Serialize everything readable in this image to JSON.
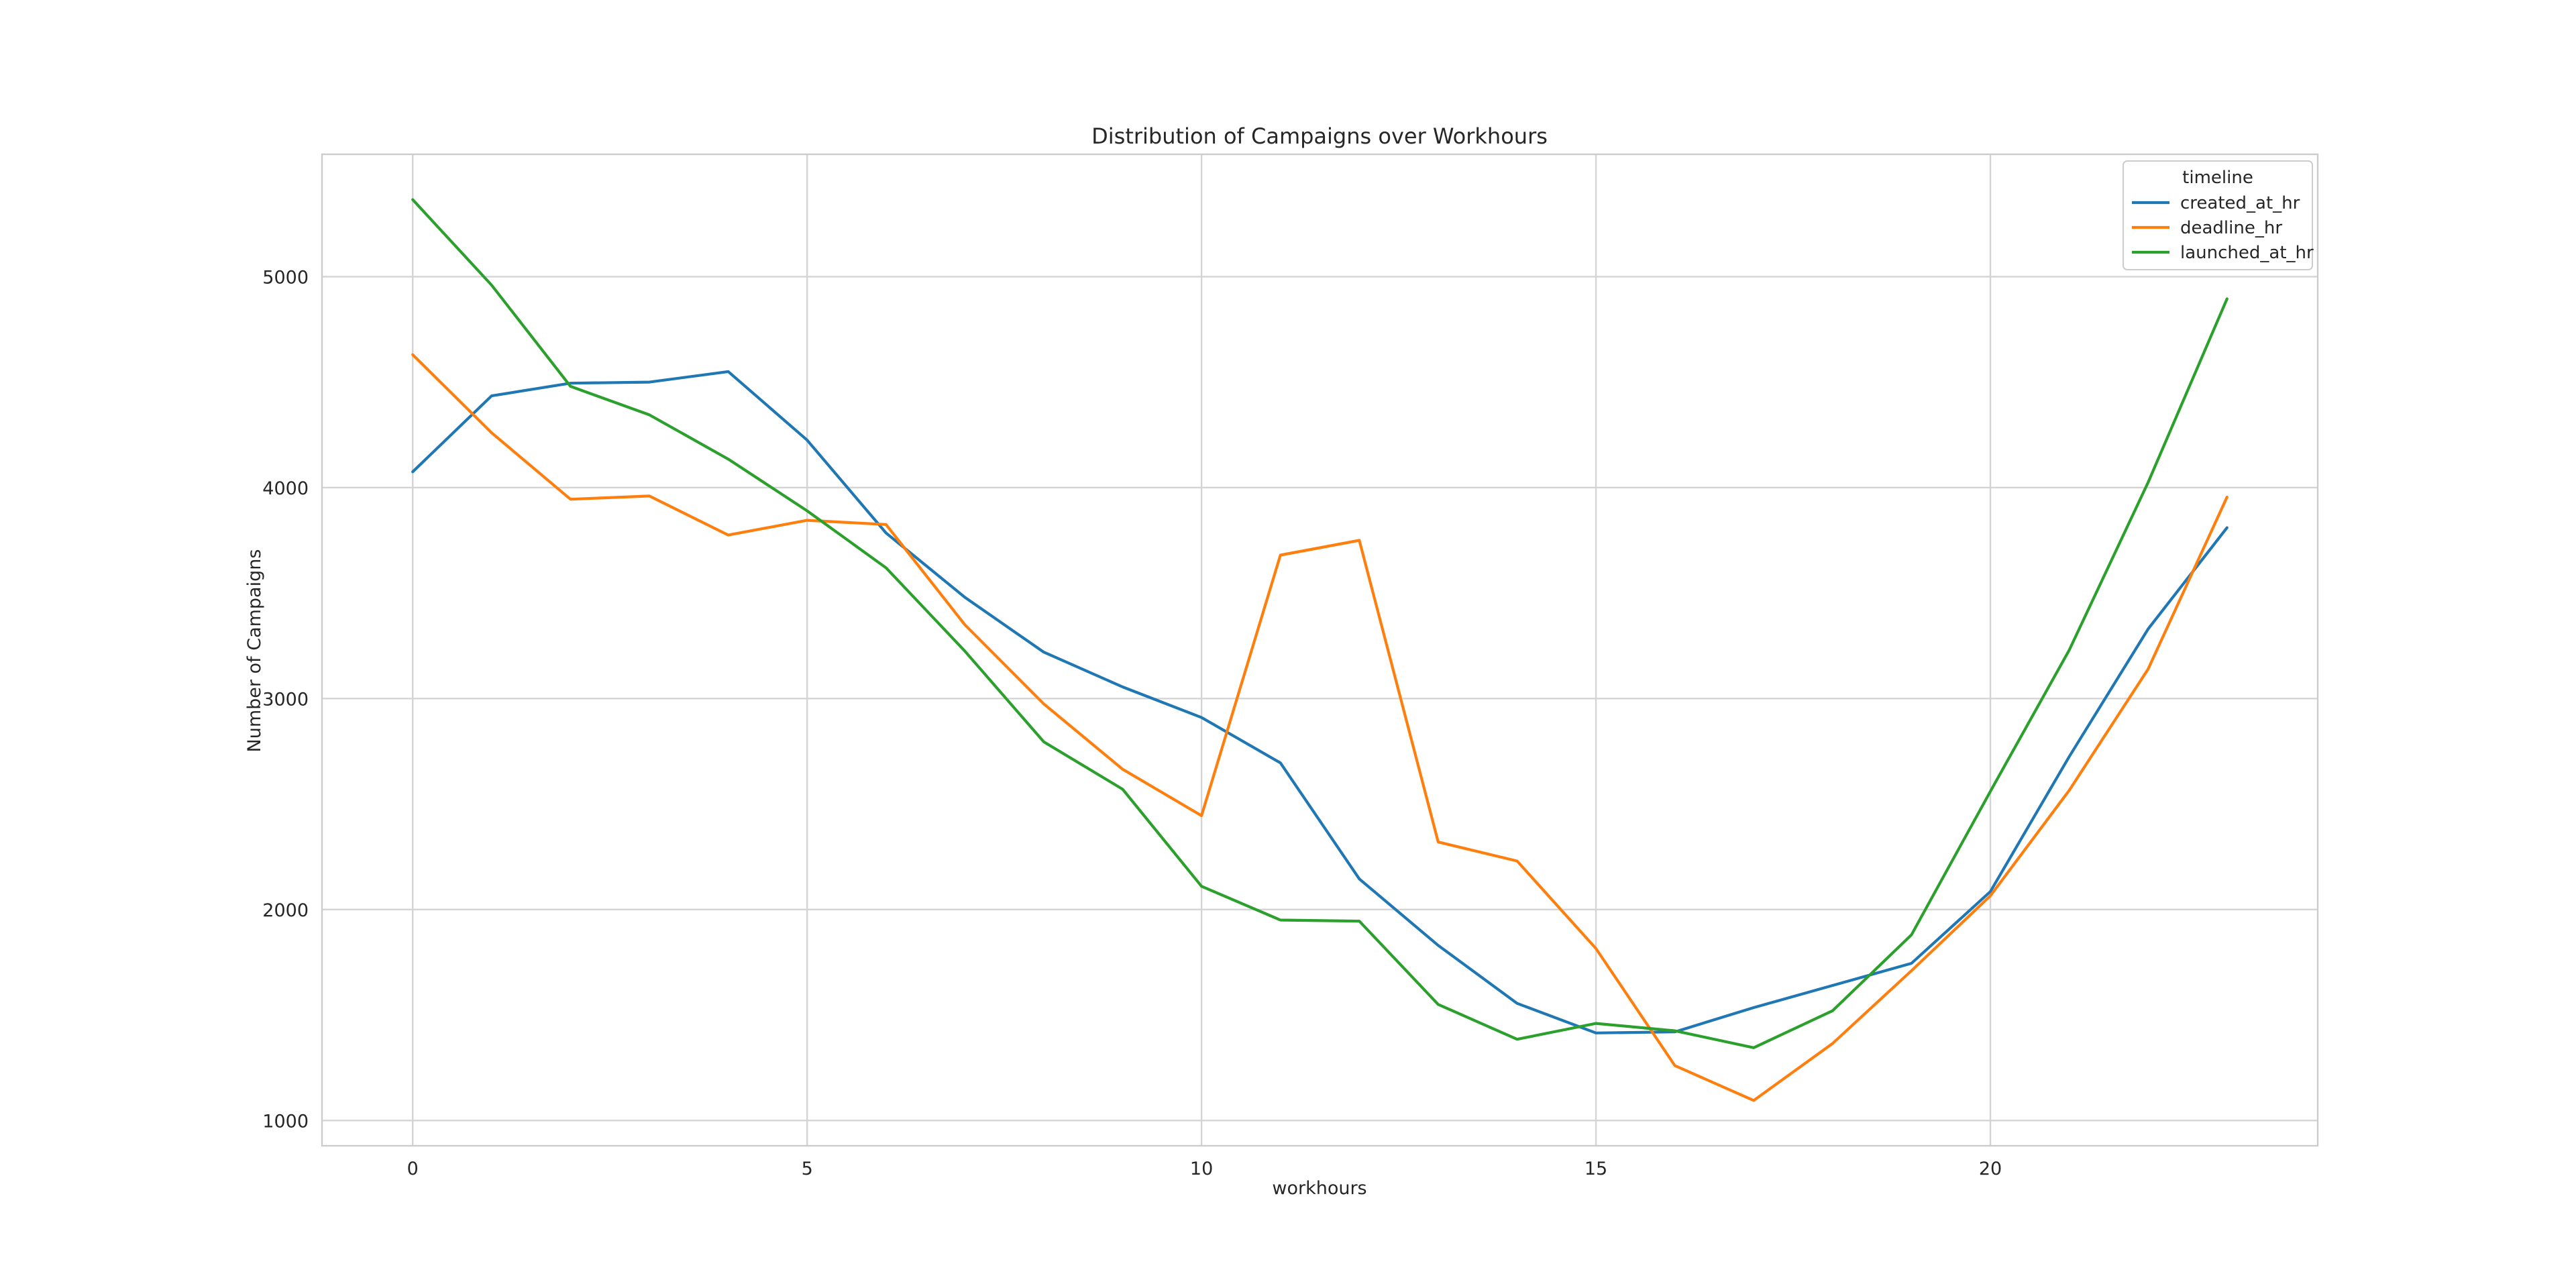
{
  "chart_data": {
    "type": "line",
    "title": "Distribution of Campaigns over Workhours",
    "xlabel": "workhours",
    "ylabel": "Number of Campaigns",
    "xlim": [
      -1.15,
      24.15
    ],
    "ylim": [
      880,
      5580
    ],
    "xticks": [
      0,
      5,
      10,
      15,
      20
    ],
    "yticks": [
      1000,
      2000,
      3000,
      4000,
      5000
    ],
    "grid": true,
    "legend": {
      "title": "timeline",
      "placement": "top-right"
    },
    "x": [
      0,
      1,
      2,
      3,
      4,
      5,
      6,
      7,
      8,
      9,
      10,
      11,
      12,
      13,
      14,
      15,
      16,
      17,
      18,
      19,
      20,
      21,
      22,
      23
    ],
    "series": [
      {
        "name": "created_at_hr",
        "color": "#1f77b4",
        "values": [
          4075,
          4435,
          4495,
          4500,
          4550,
          4225,
          3785,
          3480,
          3220,
          3055,
          2910,
          2695,
          2145,
          1830,
          1555,
          1415,
          1420,
          1535,
          1640,
          1745,
          2085,
          2725,
          3330,
          3810
        ]
      },
      {
        "name": "deadline_hr",
        "color": "#ff7f0e",
        "values": [
          4630,
          4260,
          3945,
          3960,
          3775,
          3845,
          3825,
          3350,
          2975,
          2665,
          2445,
          3680,
          3750,
          2320,
          2230,
          1815,
          1260,
          1095,
          1365,
          1710,
          2065,
          2565,
          3140,
          3955
        ]
      },
      {
        "name": "launched_at_hr",
        "color": "#2ca02c",
        "values": [
          5365,
          4960,
          4480,
          4345,
          4135,
          3890,
          3620,
          3225,
          2795,
          2570,
          2110,
          1950,
          1945,
          1550,
          1385,
          1460,
          1425,
          1345,
          1520,
          1880,
          2560,
          3230,
          4025,
          4895
        ]
      }
    ]
  }
}
